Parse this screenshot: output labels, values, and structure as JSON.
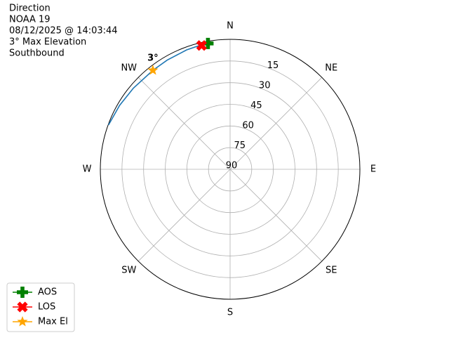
{
  "chart_data": {
    "type": "polar",
    "title_lines": [
      "Direction",
      "NOAA 19",
      "08/12/2025 @ 14:03:44",
      "3° Max Elevation",
      "Southbound"
    ],
    "theta_zero": "N",
    "theta_direction": "clockwise",
    "thetaticks": [
      {
        "value": 0,
        "label": "N"
      },
      {
        "value": 45,
        "label": "NE"
      },
      {
        "value": 90,
        "label": "E"
      },
      {
        "value": 135,
        "label": "SE"
      },
      {
        "value": 180,
        "label": "S"
      },
      {
        "value": 225,
        "label": "SW"
      },
      {
        "value": 270,
        "label": "W"
      },
      {
        "value": 315,
        "label": "NW"
      }
    ],
    "rlim": [
      90,
      0
    ],
    "rticks": [
      15,
      30,
      45,
      60,
      75,
      90
    ],
    "grid": true,
    "track": {
      "color": "#1f77b4",
      "az": [
        350,
        340,
        330,
        322,
        310,
        300,
        290
      ],
      "el": [
        1,
        2,
        2.7,
        3,
        2.5,
        1.5,
        0.3
      ]
    },
    "markers": [
      {
        "name": "AOS",
        "color": "#008000",
        "marker": "plus",
        "az": 350,
        "el": 1.5
      },
      {
        "name": "LOS",
        "color": "#ff0000",
        "marker": "x",
        "az": 347,
        "el": 2
      },
      {
        "name": "Max El",
        "color": "#ffa500",
        "marker": "star",
        "az": 322,
        "el": 3
      }
    ],
    "annotation": {
      "text": "3°",
      "az": 322,
      "el": 3
    },
    "legend": "lower left"
  }
}
